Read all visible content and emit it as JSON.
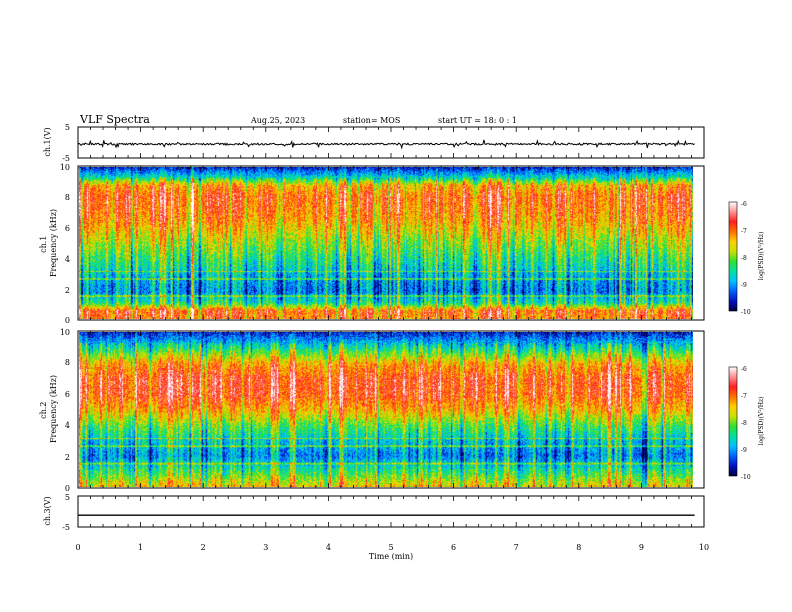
{
  "header": {
    "title": "VLF Spectra",
    "date": "Aug.25, 2023",
    "station": "station= MOS",
    "start_ut": "start  UT =   18: 0  : 1"
  },
  "chart_data": [
    {
      "type": "line",
      "panel": "ch1-waveform",
      "ylabel": "ch.1(V)",
      "ylim": [
        -5,
        5
      ],
      "y_ticks": [
        "5",
        "-5"
      ],
      "xlim": [
        0,
        10
      ],
      "series": [
        {
          "x_range": [
            0,
            9.85
          ],
          "value_approx": -0.5
        }
      ]
    },
    {
      "type": "heatmap",
      "panel": "ch1-spectrogram",
      "ylabel": "ch.1\nFrequency (kHz)",
      "ylim": [
        0,
        10
      ],
      "y_ticks": [
        "0",
        "2",
        "4",
        "6",
        "8",
        "10"
      ],
      "xlim": [
        0,
        10
      ],
      "data_x_range": [
        0,
        9.85
      ],
      "band_profile_kHz": [
        {
          "f": 0.0,
          "level": -7.2
        },
        {
          "f": 0.5,
          "level": -7.0
        },
        {
          "f": 1.0,
          "level": -8.5
        },
        {
          "f": 1.8,
          "level": -9.2
        },
        {
          "f": 2.6,
          "level": -9.0
        },
        {
          "f": 3.5,
          "level": -8.6
        },
        {
          "f": 5.0,
          "level": -8.0
        },
        {
          "f": 6.5,
          "level": -7.3
        },
        {
          "f": 8.0,
          "level": -7.0
        },
        {
          "f": 8.8,
          "level": -7.4
        },
        {
          "f": 9.3,
          "level": -8.6
        },
        {
          "f": 10.0,
          "level": -9.6
        }
      ],
      "colorbar": {
        "label": "log(PSD)(V²/Hz)",
        "range": [
          -10,
          -6
        ],
        "ticks": [
          "-6",
          "-7",
          "-8",
          "-9",
          "-10"
        ]
      }
    },
    {
      "type": "heatmap",
      "panel": "ch2-spectrogram",
      "ylabel": "ch.2\nFrequency (kHz)",
      "ylim": [
        0,
        10
      ],
      "y_ticks": [
        "0",
        "2",
        "4",
        "6",
        "8",
        "10"
      ],
      "xlim": [
        0,
        10
      ],
      "data_x_range": [
        0,
        9.85
      ],
      "band_profile_kHz": [
        {
          "f": 0.0,
          "level": -7.6
        },
        {
          "f": 0.5,
          "level": -8.0
        },
        {
          "f": 1.2,
          "level": -8.6
        },
        {
          "f": 2.0,
          "level": -9.2
        },
        {
          "f": 3.0,
          "level": -8.8
        },
        {
          "f": 4.0,
          "level": -8.2
        },
        {
          "f": 5.0,
          "level": -7.4
        },
        {
          "f": 6.0,
          "level": -6.9
        },
        {
          "f": 7.0,
          "level": -6.9
        },
        {
          "f": 8.0,
          "level": -7.4
        },
        {
          "f": 9.0,
          "level": -8.6
        },
        {
          "f": 10.0,
          "level": -9.6
        }
      ],
      "colorbar": {
        "label": "log(PSD)(V²/Hz)",
        "range": [
          -10,
          -6
        ],
        "ticks": [
          "-6",
          "-7",
          "-8",
          "-9",
          "-10"
        ]
      }
    },
    {
      "type": "line",
      "panel": "ch3-waveform",
      "ylabel": "ch.3(V)",
      "ylim": [
        -5,
        5
      ],
      "y_ticks": [
        "5",
        "-5"
      ],
      "xlim": [
        0,
        10
      ],
      "series": [
        {
          "x_range": [
            0,
            9.85
          ],
          "value_approx": -1.2
        }
      ]
    }
  ],
  "x_axis": {
    "label": "Time  (min)",
    "ticks": [
      "0",
      "1",
      "2",
      "3",
      "4",
      "5",
      "6",
      "7",
      "8",
      "9",
      "10"
    ]
  },
  "colors": {
    "colormap": [
      "#000040",
      "#0010c0",
      "#0060ff",
      "#00c0ff",
      "#00e0a0",
      "#30e030",
      "#c8e000",
      "#ffd000",
      "#ff7000",
      "#ff2020",
      "#ff9090",
      "#ffffff"
    ],
    "frame": "#000000",
    "background": "#ffffff"
  }
}
